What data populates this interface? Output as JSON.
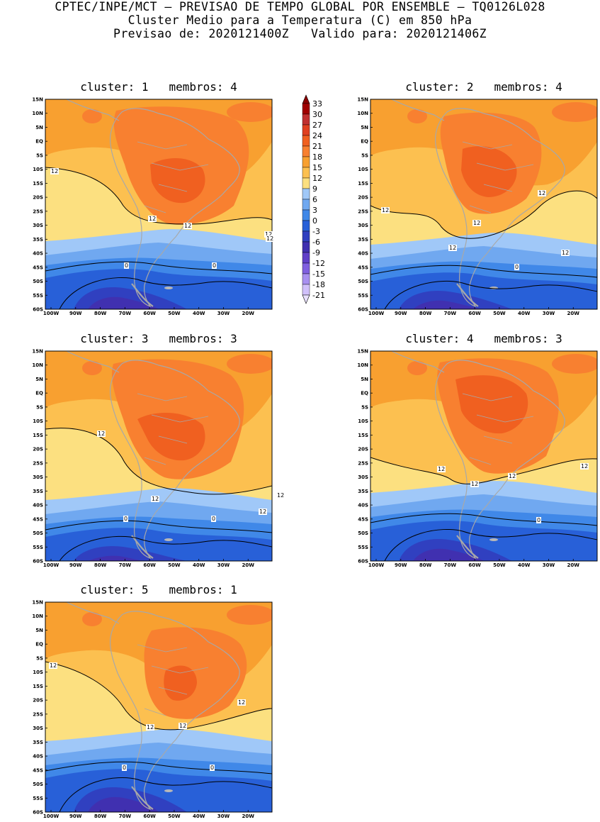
{
  "header": {
    "line1": "CPTEC/INPE/MCT – PREVISAO DE TEMPO GLOBAL POR ENSEMBLE – TQ0126L028",
    "line2": "Cluster Medio para a Temperatura (C) em 850 hPa",
    "line3": "Previsao de: 2020121400Z   Valido para: 2020121406Z"
  },
  "axes": {
    "lat_labels": [
      "15N",
      "10N",
      "5N",
      "EQ",
      "5S",
      "10S",
      "15S",
      "20S",
      "25S",
      "30S",
      "35S",
      "40S",
      "45S",
      "50S",
      "55S",
      "60S"
    ],
    "lon_labels": [
      "100W",
      "90W",
      "80W",
      "70W",
      "60W",
      "50W",
      "40W",
      "30W",
      "20W"
    ]
  },
  "colorbar": {
    "labels": [
      "33",
      "30",
      "27",
      "24",
      "21",
      "18",
      "15",
      "12",
      "9",
      "6",
      "3",
      "0",
      "-3",
      "-6",
      "-9",
      "-12",
      "-15",
      "-18",
      "-21"
    ],
    "colors": [
      "#a00000",
      "#c03030",
      "#e04020",
      "#f06020",
      "#f88030",
      "#f8a030",
      "#fcc050",
      "#fce080",
      "#a0c8f8",
      "#70a8f0",
      "#4088e8",
      "#2860d8",
      "#3040c0",
      "#4030b0",
      "#6040c8",
      "#8060e0",
      "#a890f0",
      "#d0c0fa"
    ],
    "top_arrow_color": "#8a0000",
    "bottom_arrow_color": "#e8e0fc"
  },
  "panels": [
    {
      "title": "cluster: 1   membros: 4",
      "contour_labels": [
        "12",
        "12",
        "12",
        "12",
        "12",
        "0",
        "0"
      ]
    },
    {
      "title": "cluster: 2   membros: 4",
      "contour_labels": [
        "12",
        "12",
        "12",
        "12",
        "12",
        "0"
      ]
    },
    {
      "title": "cluster: 3   membros: 3",
      "contour_labels": [
        "12",
        "12",
        "12",
        "12",
        "0",
        "0"
      ]
    },
    {
      "title": "cluster: 4   membros: 3",
      "contour_labels": [
        "12",
        "12",
        "12",
        "12",
        "0"
      ]
    },
    {
      "title": "cluster: 5   membros: 1",
      "contour_labels": [
        "12",
        "12",
        "12",
        "12",
        "0",
        "0"
      ]
    }
  ]
}
